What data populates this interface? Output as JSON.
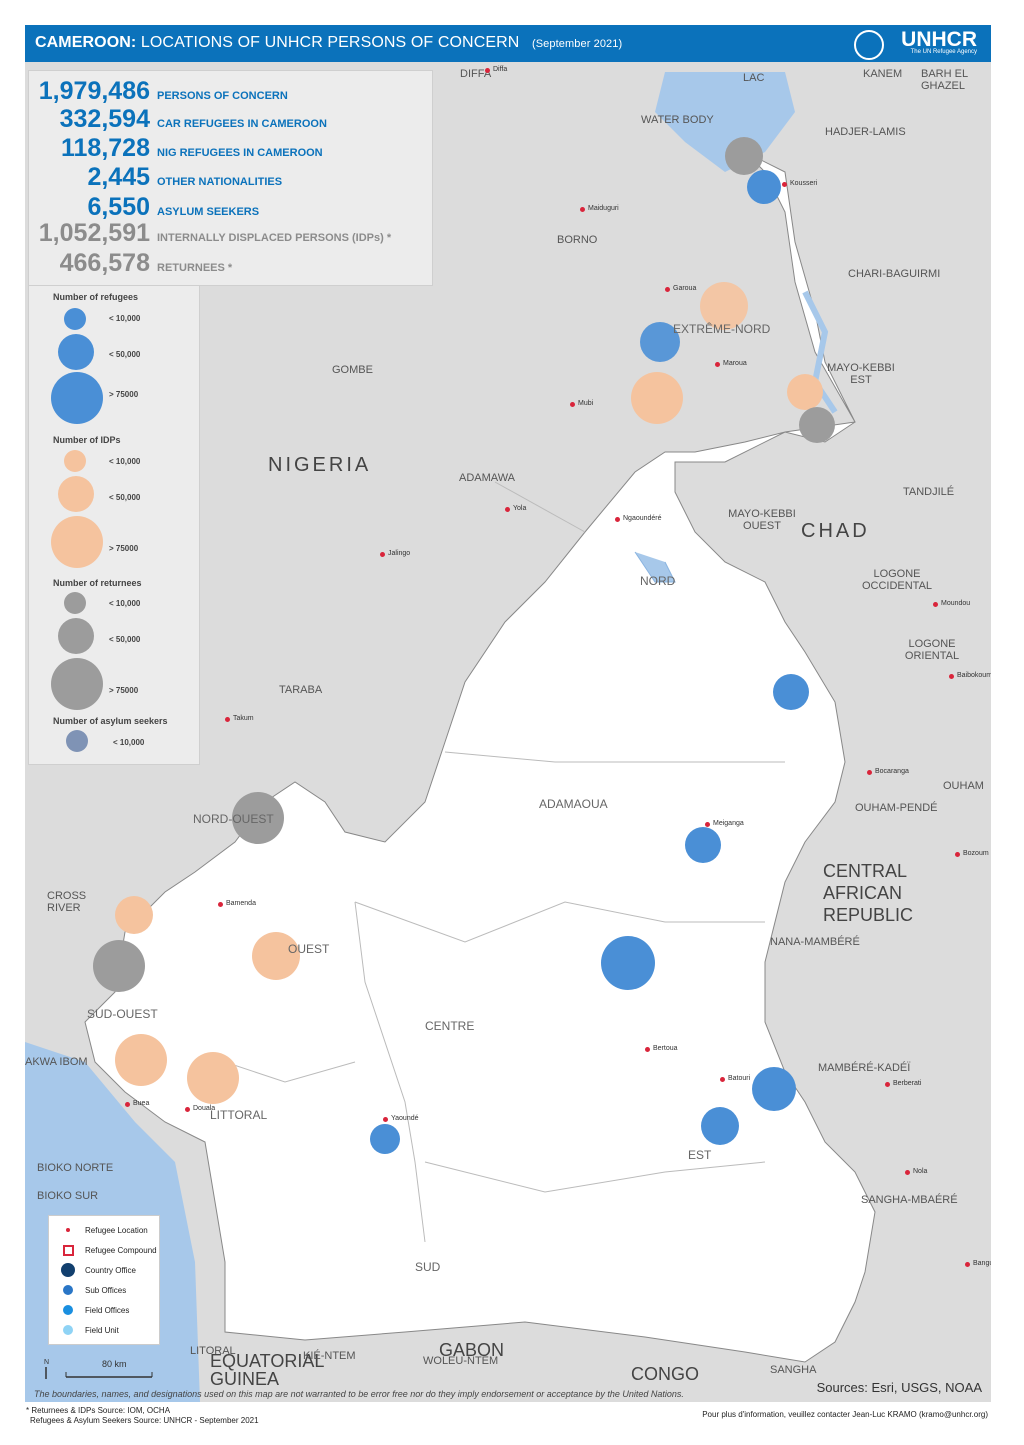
{
  "header": {
    "title_bold": "CAMEROON:",
    "title_rest": "LOCATIONS OF UNHCR PERSONS OF CONCERN",
    "date": "(September 2021)",
    "logo": "UNHCR",
    "logo_sub": "The UN Refugee Agency"
  },
  "colors": {
    "header_bg": "#0b72bb",
    "refugee": "#4a8fd6",
    "idp": "#f5c39e",
    "returnee": "#9c9c9c",
    "asylum": "#7f93b5",
    "water": "#a7c8ea",
    "cameroon": "#ffffff",
    "neighbours": "#dcdcdc"
  },
  "stats": [
    {
      "value": "1,979,486",
      "label": "PERSONS OF CONCERN",
      "tone": "blue"
    },
    {
      "value": "332,594",
      "label": "CAR REFUGEES IN CAMEROON",
      "tone": "blue"
    },
    {
      "value": "118,728",
      "label": "NIG REFUGEES IN CAMEROON",
      "tone": "blue"
    },
    {
      "value": "2,445",
      "label": "OTHER NATIONALITIES",
      "tone": "blue"
    },
    {
      "value": "6,550",
      "label": "ASYLUM SEEKERS",
      "tone": "blue"
    },
    {
      "value": "1,052,591",
      "label": "INTERNALLY DISPLACED PERSONS (IDPs) *",
      "tone": "grey"
    },
    {
      "value": "466,578",
      "label": "RETURNEES *",
      "tone": "grey"
    }
  ],
  "legend": {
    "refugees_title": "Number of refugees",
    "idps_title": "Number of IDPs",
    "returnees_title": "Number of returnees",
    "asylum_title": "Number of asylum seekers",
    "size_small": "< 10,000",
    "size_mid": "< 50,000",
    "size_large": "> 75000",
    "locations": [
      {
        "label": "Refugee Location",
        "icon": "refugee-location-icon"
      },
      {
        "label": "Refugee Compound",
        "icon": "refugee-compound-icon"
      },
      {
        "label": "Country Office",
        "icon": "country-office-icon"
      },
      {
        "label": "Sub Offices",
        "icon": "sub-office-icon"
      },
      {
        "label": "Field Offices",
        "icon": "field-office-icon"
      },
      {
        "label": "Field Unit",
        "icon": "field-unit-icon"
      }
    ],
    "scale": "80 km"
  },
  "map": {
    "countries": [
      "NIGERIA",
      "CHAD",
      "CENTRAL AFRICAN REPUBLIC",
      "EQUATORIAL GUINEA",
      "GABON",
      "CONGO"
    ],
    "regions": [
      "EXTRÊME-NORD",
      "NORD",
      "ADAMAOUA",
      "EST",
      "CENTRE",
      "SUD",
      "LITTORAL",
      "OUEST",
      "NORD-OUEST",
      "SUD-OUEST"
    ],
    "neighbour_regions": [
      "LAC",
      "BARH EL GHAZEL",
      "KANEM",
      "HADJER-LAMIS",
      "CHARI-BAGUIRMI",
      "MAYO-KEBBI EST",
      "MAYO-KEBBI OUEST",
      "TANDJILÉ",
      "LOGONE OCCIDENTAL",
      "LOGONE ORIENTAL",
      "OUHAM",
      "OUHAM-PENDÉ",
      "NANA-MAMBÉRÉ",
      "MAMBÉRÉ-KADÉÏ",
      "SANGHA-MBAÉRÉ",
      "SANGHA",
      "WOLEU-NTEM",
      "BIOKO NORTE",
      "BIOKO SUR",
      "LITORAL",
      "KIÉ-NTEM",
      "CROSS RIVER",
      "AKWA IBOM",
      "TARABA",
      "ADAMAWA",
      "GOMBE",
      "BORNO",
      "DIFFA",
      "WATER BODY"
    ],
    "towns": [
      "Diffa",
      "Maiduguri",
      "Mubi",
      "Yola",
      "Jalingo",
      "Takum",
      "Maroua",
      "Garoua",
      "Ngaoundéré",
      "Meiganga",
      "Bertoua",
      "Batouri",
      "Yaoundé",
      "Douala",
      "Buea",
      "Bamenda",
      "Kousseri",
      "Moundou",
      "Baibokoum",
      "Bocaranga",
      "Bozoum",
      "Berberati",
      "Nola",
      "Bangui"
    ]
  },
  "footer": {
    "disclaimer": "The boundaries, names, and designations used on this map are not warranted to be error free nor do they imply endorsement or acceptance by the United Nations.",
    "sources": "Sources: Esri, USGS, NOAA",
    "note1": "* Returnees & IDPs  Source: IOM, OCHA",
    "note2": "Refugees & Asylum Seekers  Source: UNHCR - September 2021",
    "contact": "Pour plus d'information, veuillez contacter Jean-Luc KRAMO (kramo@unhcr.org)"
  }
}
